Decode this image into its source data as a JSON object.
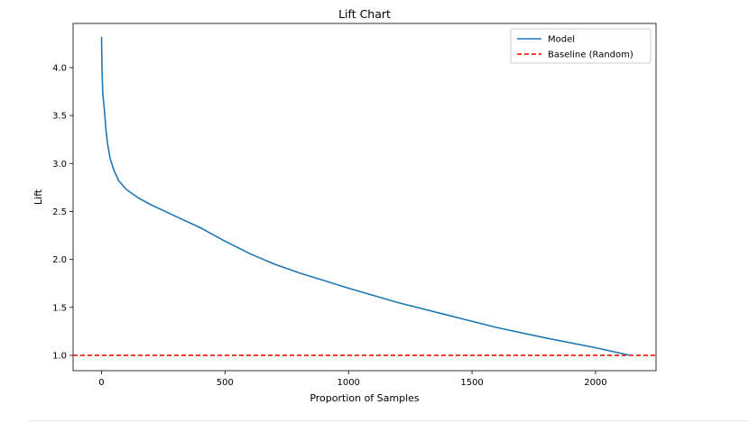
{
  "chart_data": {
    "type": "line",
    "title": "Lift Chart",
    "xlabel": "Proportion of Samples",
    "ylabel": "Lift",
    "xlim": [
      -115,
      2245
    ],
    "ylim": [
      0.84,
      4.46
    ],
    "xticks": [
      0,
      500,
      1000,
      1500,
      2000
    ],
    "xtick_labels": [
      "0",
      "500",
      "1000",
      "1500",
      "2000"
    ],
    "yticks": [
      1.0,
      1.5,
      2.0,
      2.5,
      3.0,
      3.5,
      4.0
    ],
    "ytick_labels": [
      "1.0",
      "1.5",
      "2.0",
      "2.5",
      "3.0",
      "3.5",
      "4.0"
    ],
    "grid": false,
    "legend_position": "top-right",
    "series": [
      {
        "name": "Model",
        "style": "solid",
        "color": "#1f77b4",
        "x": [
          0,
          2,
          5,
          8,
          12,
          18,
          25,
          35,
          50,
          70,
          100,
          150,
          200,
          300,
          400,
          500,
          600,
          700,
          800,
          900,
          1000,
          1200,
          1400,
          1600,
          1800,
          2000,
          2140
        ],
        "y": [
          4.32,
          4.0,
          3.75,
          3.65,
          3.55,
          3.35,
          3.2,
          3.05,
          2.93,
          2.82,
          2.73,
          2.64,
          2.57,
          2.45,
          2.33,
          2.19,
          2.06,
          1.95,
          1.86,
          1.78,
          1.7,
          1.55,
          1.42,
          1.29,
          1.18,
          1.08,
          1.0
        ]
      },
      {
        "name": "Baseline (Random)",
        "style": "dashed",
        "color": "#ff0000",
        "y": 1.0
      }
    ]
  }
}
